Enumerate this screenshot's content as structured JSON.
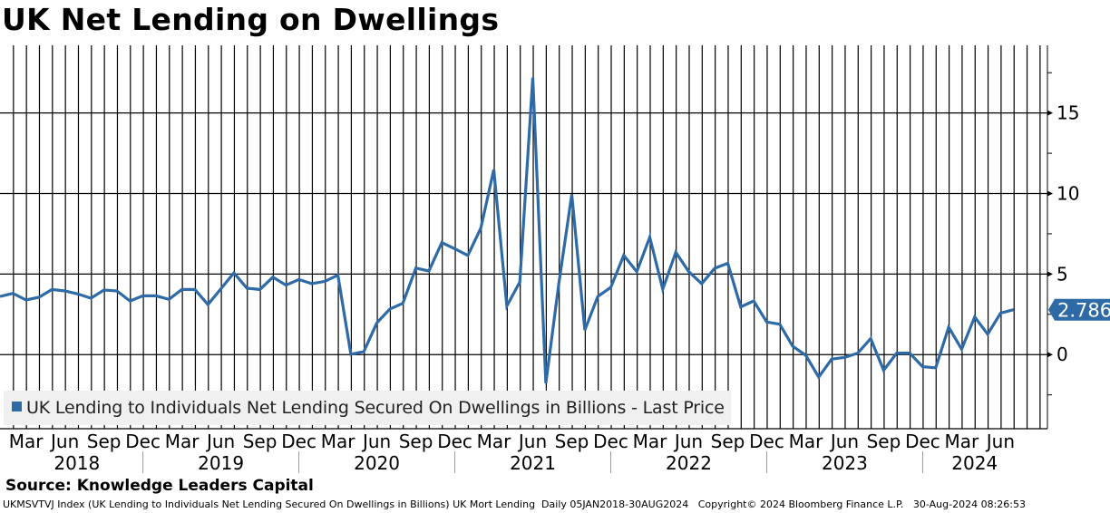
{
  "title": "UK Net Lending on Dwellings",
  "source": "Source: Knowledge Leaders Capital",
  "footer": "UKMSVTVJ Index (UK Lending to Individuals Net Lending Secured On Dwellings in Billions) UK Mort Lending  Daily 05JAN2018-30AUG2024   Copyright© 2024 Bloomberg Finance L.P.   30-Aug-2024 08:26:53",
  "colors": {
    "series": "#2e6aa6",
    "legend_bg": "#f0f0f0",
    "grid": "#000000"
  },
  "chart_data": {
    "type": "line",
    "title": "UK Net Lending on Dwellings",
    "xlabel": "",
    "ylabel": "",
    "ylim": [
      -4.6,
      19.2
    ],
    "yticks": [
      0,
      5,
      10,
      15
    ],
    "grid": true,
    "legend_position": "bottom-left",
    "x_start": "2018-01",
    "x_frequency": "monthly",
    "month_tick_labels": [
      "Mar",
      "Jun",
      "Sep",
      "Dec",
      "Mar",
      "Jun",
      "Sep",
      "Dec",
      "Mar",
      "Jun",
      "Sep",
      "Dec",
      "Mar",
      "Jun",
      "Sep",
      "Dec",
      "Mar",
      "Jun",
      "Sep",
      "Dec",
      "Mar",
      "Jun",
      "Sep",
      "Dec",
      "Mar",
      "Jun"
    ],
    "year_labels": [
      "2018",
      "2019",
      "2020",
      "2021",
      "2022",
      "2023",
      "2024"
    ],
    "last_value_label": "2.786",
    "series": [
      {
        "name": "UK Lending to Individuals Net Lending Secured On Dwellings in Billions - Last Price",
        "values": [
          3.61,
          3.8,
          3.39,
          3.56,
          4.04,
          3.95,
          3.76,
          3.5,
          4.01,
          3.95,
          3.33,
          3.65,
          3.65,
          3.43,
          4.04,
          4.04,
          3.11,
          4.09,
          5.07,
          4.12,
          4.04,
          4.81,
          4.31,
          4.66,
          4.4,
          4.55,
          4.93,
          0.02,
          0.19,
          1.97,
          2.83,
          3.18,
          5.37,
          5.19,
          6.95,
          6.57,
          6.16,
          7.85,
          11.48,
          3.02,
          4.51,
          17.19,
          -1.78,
          4.4,
          9.94,
          1.52,
          3.61,
          4.17,
          6.16,
          5.15,
          7.29,
          4.06,
          6.35,
          5.15,
          4.4,
          5.36,
          5.67,
          2.96,
          3.33,
          2.02,
          1.89,
          0.52,
          -0.04,
          -1.4,
          -0.28,
          -0.17,
          0.09,
          0.99,
          -0.97,
          0.09,
          0.09,
          -0.75,
          -0.82,
          1.7,
          0.34,
          2.34,
          1.27,
          2.58,
          2.786
        ]
      }
    ]
  }
}
